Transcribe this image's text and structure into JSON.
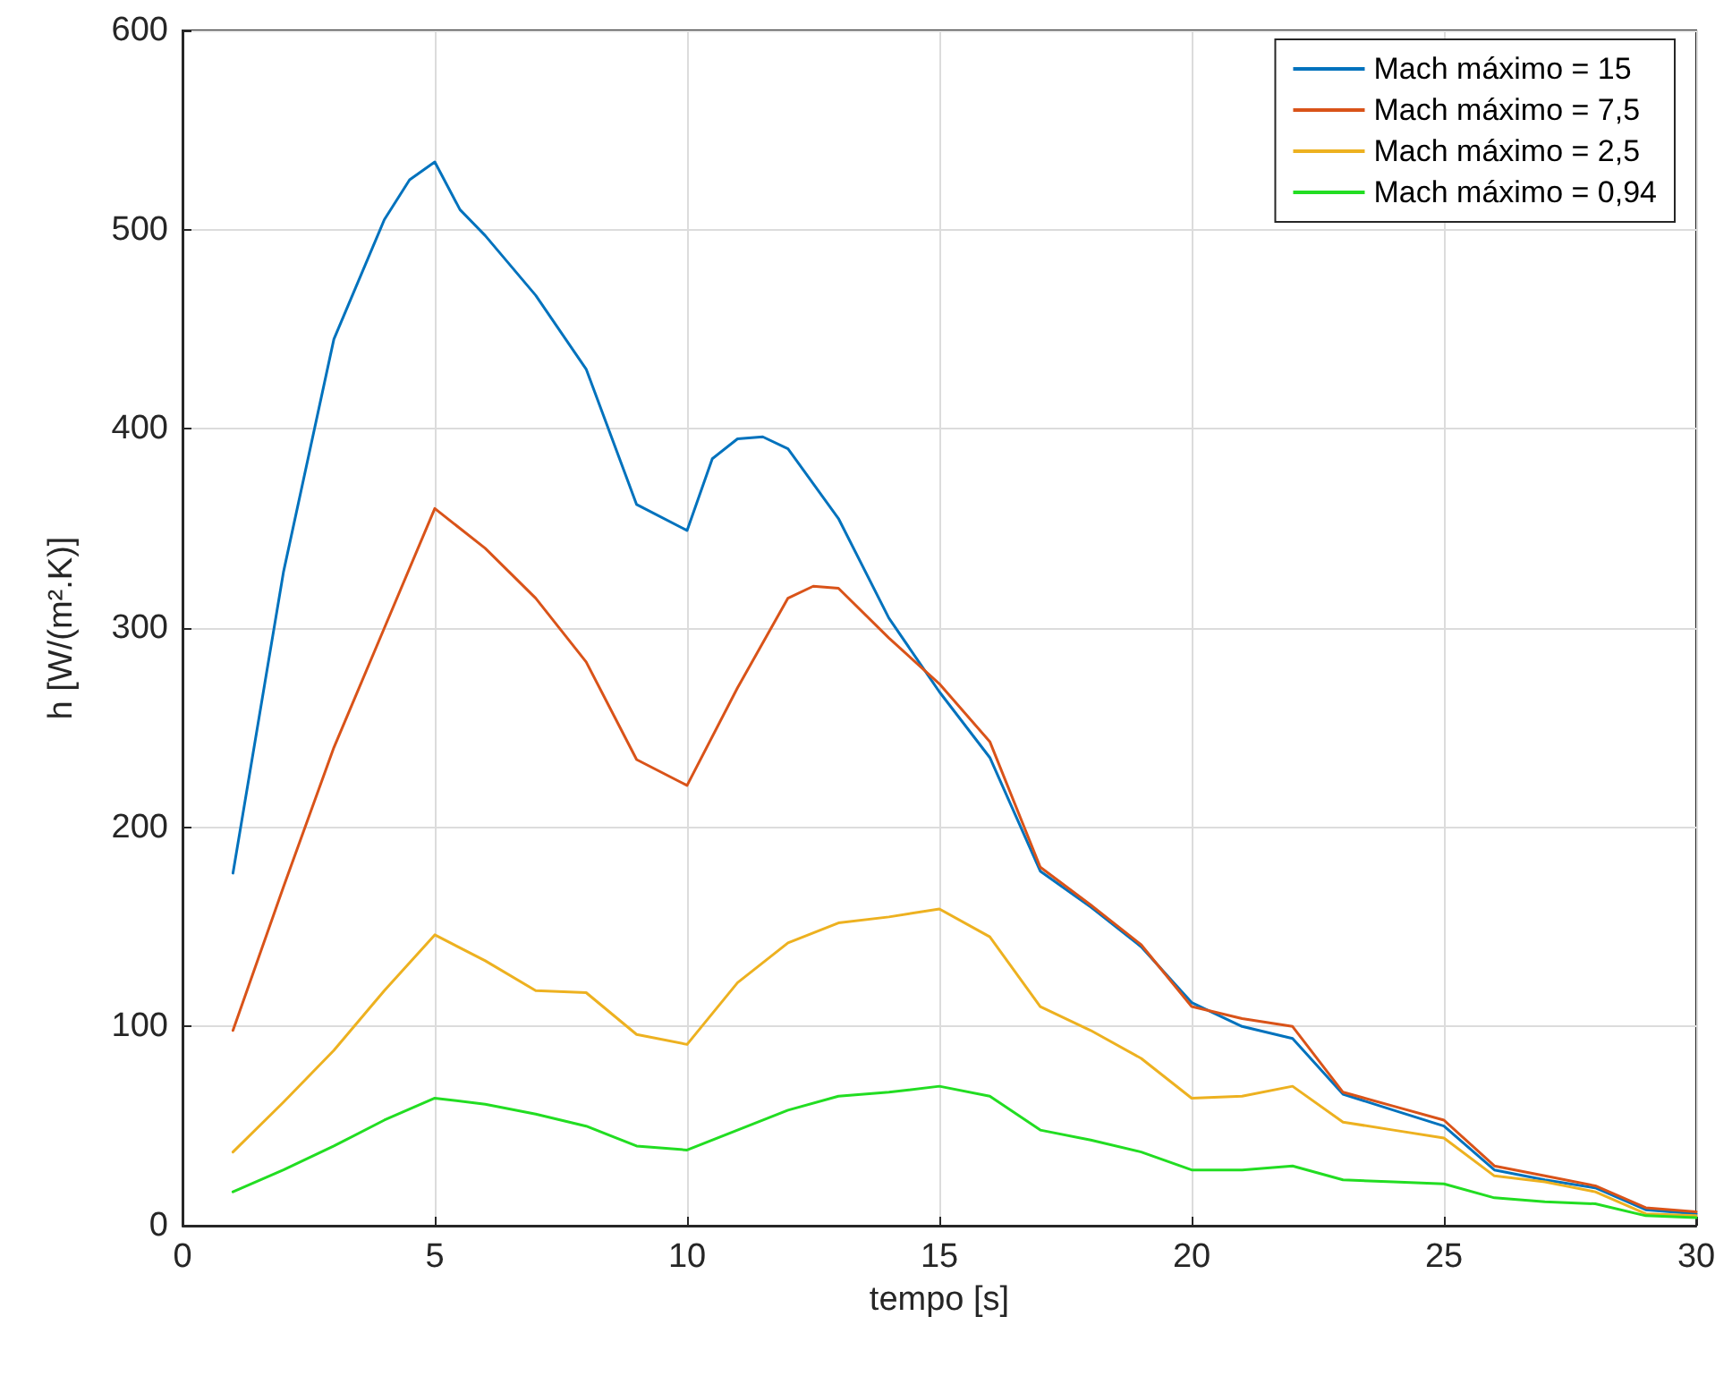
{
  "chart_data": {
    "type": "line",
    "xlabel": "tempo [s]",
    "ylabel": "h [W/(m².K)]",
    "xlim": [
      0,
      30
    ],
    "xticks": [
      0,
      5,
      10,
      15,
      20,
      25,
      30
    ],
    "ylim": [
      0,
      600
    ],
    "yticks": [
      0,
      100,
      200,
      300,
      400,
      500,
      600
    ],
    "grid": true,
    "legend": "top right",
    "marker": "none",
    "line_style": "solid",
    "x": [
      1,
      2,
      3,
      4,
      5,
      6,
      7,
      8,
      9,
      10,
      11,
      12,
      13,
      14,
      15,
      16,
      17,
      18,
      19,
      20,
      21,
      22,
      23,
      24,
      25,
      26,
      27,
      28,
      29,
      30
    ],
    "series": [
      {
        "name": "Mach máximo = 15",
        "color": "#0072bd",
        "x": [
          1,
          2,
          3,
          4,
          4.5,
          5,
          5.5,
          6,
          7,
          8,
          9,
          10,
          10.5,
          11,
          11.5,
          12,
          13,
          14,
          15,
          16,
          17,
          18,
          19,
          20,
          21,
          22,
          23,
          24,
          25,
          26,
          27,
          28,
          29,
          30
        ],
        "values": [
          177,
          328,
          445,
          505,
          525,
          534,
          510,
          497,
          467,
          430,
          362,
          349,
          385,
          395,
          396,
          390,
          355,
          305,
          268,
          235,
          178,
          160,
          140,
          112,
          100,
          94,
          66,
          58,
          50,
          28,
          23,
          19,
          8,
          6
        ]
      },
      {
        "name": "Mach máximo = 7,5",
        "color": "#d95319",
        "x": [
          1,
          2,
          3,
          4,
          5,
          6,
          7,
          8,
          9,
          10,
          11,
          12,
          12.5,
          13,
          14,
          15,
          16,
          17,
          18,
          19,
          20,
          21,
          22,
          23,
          24,
          25,
          26,
          27,
          28,
          29,
          30
        ],
        "values": [
          98,
          170,
          240,
          300,
          360,
          340,
          315,
          283,
          234,
          221,
          270,
          315,
          321,
          320,
          295,
          272,
          243,
          180,
          161,
          141,
          110,
          104,
          100,
          67,
          60,
          53,
          30,
          25,
          20,
          9,
          7
        ]
      },
      {
        "name": "Mach máximo = 2,5",
        "color": "#edb120",
        "values": [
          37,
          62,
          88,
          118,
          146,
          133,
          118,
          117,
          96,
          91,
          122,
          142,
          152,
          155,
          159,
          145,
          110,
          98,
          84,
          64,
          65,
          70,
          52,
          48,
          44,
          25,
          22,
          17,
          6,
          5
        ]
      },
      {
        "name": "Mach máximo = 0,94",
        "color": "#22dd22",
        "values": [
          17,
          28,
          40,
          53,
          64,
          61,
          56,
          50,
          40,
          38,
          48,
          58,
          65,
          67,
          70,
          65,
          48,
          43,
          37,
          28,
          28,
          30,
          23,
          22,
          21,
          14,
          12,
          11,
          5,
          4
        ]
      }
    ]
  }
}
